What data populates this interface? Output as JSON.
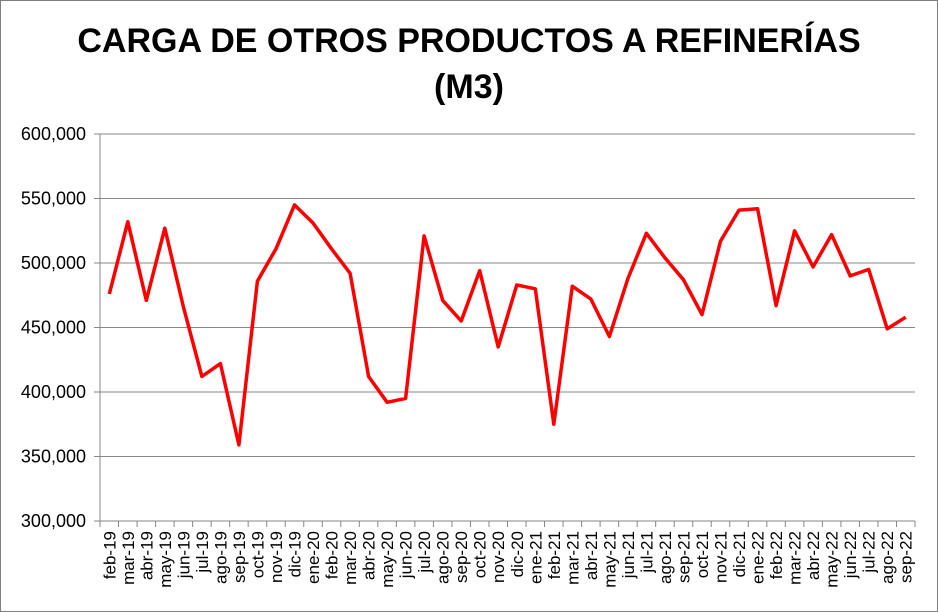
{
  "chart_data": {
    "type": "line",
    "title_line1": "CARGA DE OTROS PRODUCTOS A REFINERÍAS",
    "title_line2": "(M3)",
    "xlabel": "",
    "ylabel": "",
    "ylim": [
      300000,
      600000
    ],
    "y_ticks": [
      "300,000",
      "350,000",
      "400,000",
      "450,000",
      "500,000",
      "550,000",
      "600,000"
    ],
    "grid": true,
    "legend": "none",
    "line_color": "#ff0000",
    "categories": [
      "feb-19",
      "mar-19",
      "abr-19",
      "may-19",
      "jun-19",
      "jul-19",
      "ago-19",
      "sep-19",
      "oct-19",
      "nov-19",
      "dic-19",
      "ene-20",
      "feb-20",
      "mar-20",
      "abr-20",
      "may-20",
      "jun-20",
      "jul-20",
      "ago-20",
      "sep-20",
      "oct-20",
      "nov-20",
      "dic-20",
      "ene-21",
      "feb-21",
      "mar-21",
      "abr-21",
      "may-21",
      "jun-21",
      "jul-21",
      "ago-21",
      "sep-21",
      "oct-21",
      "nov-21",
      "dic-21",
      "ene-22",
      "feb-22",
      "mar-22",
      "abr-22",
      "may-22",
      "jun-22",
      "jul-22",
      "ago-22",
      "sep-22"
    ],
    "series": [
      {
        "values": [
          476000,
          532000,
          471000,
          527000,
          466000,
          412000,
          422000,
          359000,
          486000,
          511000,
          545000,
          531000,
          511000,
          492000,
          412000,
          392000,
          395000,
          521000,
          471000,
          455000,
          494000,
          435000,
          483000,
          480000,
          375000,
          482000,
          472000,
          443000,
          488000,
          523000,
          504000,
          487000,
          460000,
          517000,
          541000,
          542000,
          467000,
          525000,
          497000,
          522000,
          490000,
          495000,
          449000,
          458000
        ]
      }
    ]
  }
}
